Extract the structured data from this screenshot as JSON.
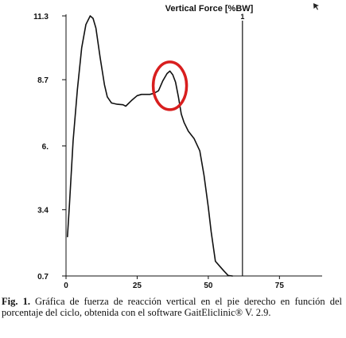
{
  "chart_data": {
    "type": "line",
    "title": "Vertical Force [%BW]",
    "xlim": [
      0,
      90
    ],
    "ylim": [
      0.7,
      11.3
    ],
    "x_ticks": [
      0,
      25,
      50,
      75
    ],
    "x_tick_labels": [
      "0",
      "25",
      "50",
      "75"
    ],
    "y_ticks": [
      0.7,
      3.4,
      6.0,
      8.7,
      11.3
    ],
    "y_tick_labels": [
      "0.7",
      "3.4",
      "6.",
      "8.7",
      "11.3"
    ],
    "vertical_marker": {
      "x": 62,
      "label": "1"
    },
    "highlight": {
      "shape": "ellipse",
      "color": "#d81e1e",
      "center": [
        36.5,
        8.45
      ]
    },
    "series": [
      {
        "x": [
          0.5,
          1.2,
          2.5,
          4,
          5.5,
          7,
          8.5,
          9.5,
          10.5,
          12,
          13.5,
          14.5,
          16,
          18,
          20,
          21,
          23,
          25,
          26.5,
          28,
          29.5,
          31,
          32.5,
          34,
          35.5,
          36.5,
          37.5,
          38.5,
          39.5,
          40.5,
          41.5,
          43,
          45,
          47,
          48.5,
          50,
          51,
          52.5,
          54,
          55.5,
          57,
          58.5
        ],
        "y": [
          2.3,
          3.6,
          6.2,
          8.3,
          10.0,
          10.95,
          11.3,
          11.2,
          10.8,
          9.6,
          8.5,
          8.0,
          7.75,
          7.7,
          7.68,
          7.62,
          7.85,
          8.05,
          8.1,
          8.1,
          8.1,
          8.15,
          8.25,
          8.65,
          8.95,
          9.05,
          8.9,
          8.6,
          8.0,
          7.3,
          6.95,
          6.6,
          6.3,
          5.8,
          4.8,
          3.5,
          2.5,
          1.3,
          1.1,
          0.9,
          0.72,
          0.7
        ]
      }
    ]
  },
  "caption": {
    "label": "Fig. 1.",
    "text": " Gráfica de fuerza de reacción vertical en el pie derecho en función del porcentaje del ciclo, obtenida con el software GaitEliclinic® V. 2.9."
  },
  "icons": {
    "corner": "cursor-arrow-icon"
  }
}
